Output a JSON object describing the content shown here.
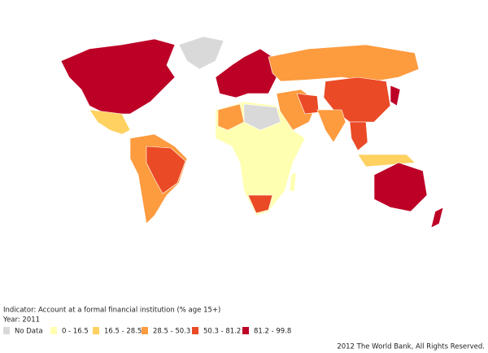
{
  "legend": {
    "indicator": "Indicator: Account at a formal financial institution (% age 15+)",
    "year": "Year: 2011",
    "items": [
      {
        "label": "No Data",
        "color": "#d9d9d9"
      },
      {
        "label": "0 - 16.5",
        "color": "#ffffb2"
      },
      {
        "label": "16.5 - 28.5",
        "color": "#fed160"
      },
      {
        "label": "28.5 - 50.3",
        "color": "#fd9b3f"
      },
      {
        "label": "50.3 - 81.2",
        "color": "#ea4a26"
      },
      {
        "label": "81.2 - 99.8",
        "color": "#bd0026"
      }
    ]
  },
  "footer": "2012 The World Bank, All Rights Reserved."
}
